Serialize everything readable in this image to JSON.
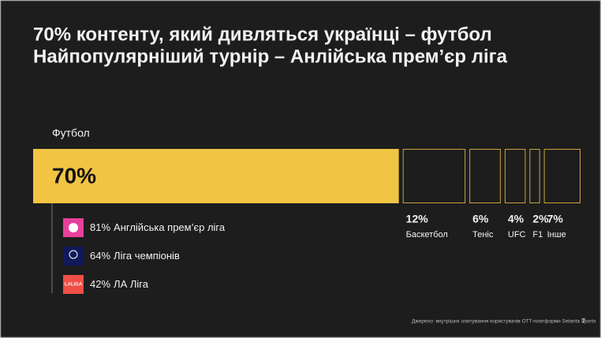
{
  "chart_data": {
    "type": "bar",
    "title": "70% контенту, який дивляться українці – футбол",
    "subtitle": "Найпопулярніший турнір – Анлійська прем’єр ліга",
    "categories": [
      "Футбол",
      "Баскетбол",
      "Теніс",
      "UFC",
      "F1",
      "Інше"
    ],
    "values": [
      70,
      12,
      6,
      4,
      2,
      7
    ],
    "value_labels": [
      "70%",
      "12%",
      "6%",
      "4%",
      "2%",
      "7%"
    ],
    "color": "#f2c443"
  },
  "breakdown": {
    "items": [
      {
        "label": "81%",
        "name": "Англійська прем’єр ліга"
      },
      {
        "label": "64%",
        "name": "Ліга чемпіонів"
      },
      {
        "label": "42%",
        "name": "ЛА Ліга"
      }
    ],
    "logo_text": "LALIGA"
  },
  "footer": {
    "source": "Джерело: внутрішнє опитування користувачів OTT-платформи Setanta Sports",
    "page": "7"
  }
}
